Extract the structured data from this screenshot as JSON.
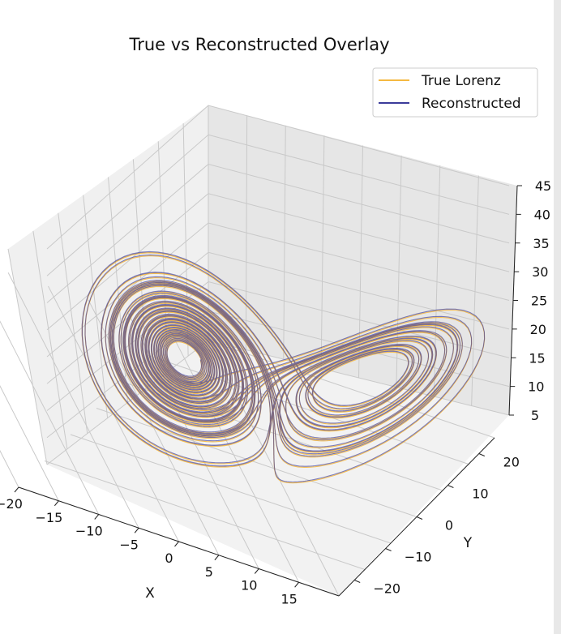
{
  "chart_data": {
    "type": "line",
    "projection": "3d",
    "title": "True vs Reconstructed Overlay",
    "xlabel": "X",
    "ylabel": "Y",
    "zlabel": "",
    "xlim": [
      -20,
      20
    ],
    "ylim": [
      -25,
      25
    ],
    "zlim": [
      5,
      45
    ],
    "x_ticks": [
      "−20",
      "−15",
      "−10",
      "−5",
      "0",
      "5",
      "10",
      "15"
    ],
    "y_ticks": [
      "−20",
      "−10",
      "0",
      "10",
      "20"
    ],
    "z_ticks": [
      "5",
      "10",
      "15",
      "20",
      "25",
      "30",
      "35",
      "40",
      "45"
    ],
    "grid": true,
    "legend_position": "upper right",
    "series": [
      {
        "name": "True Lorenz",
        "color": "#f5b942",
        "system": "lorenz",
        "parameters": {
          "sigma": 10,
          "rho": 28,
          "beta": 2.6667
        },
        "x_range": [
          -18,
          18
        ],
        "y_range": [
          -24,
          24
        ],
        "z_range": [
          5,
          45
        ]
      },
      {
        "name": "Reconstructed",
        "color": "#3b3b9a",
        "system": "lorenz",
        "parameters": {
          "sigma": 10,
          "rho": 28,
          "beta": 2.6667
        },
        "x_range": [
          -18,
          18
        ],
        "y_range": [
          -24,
          24
        ],
        "z_range": [
          5,
          45
        ]
      }
    ]
  }
}
